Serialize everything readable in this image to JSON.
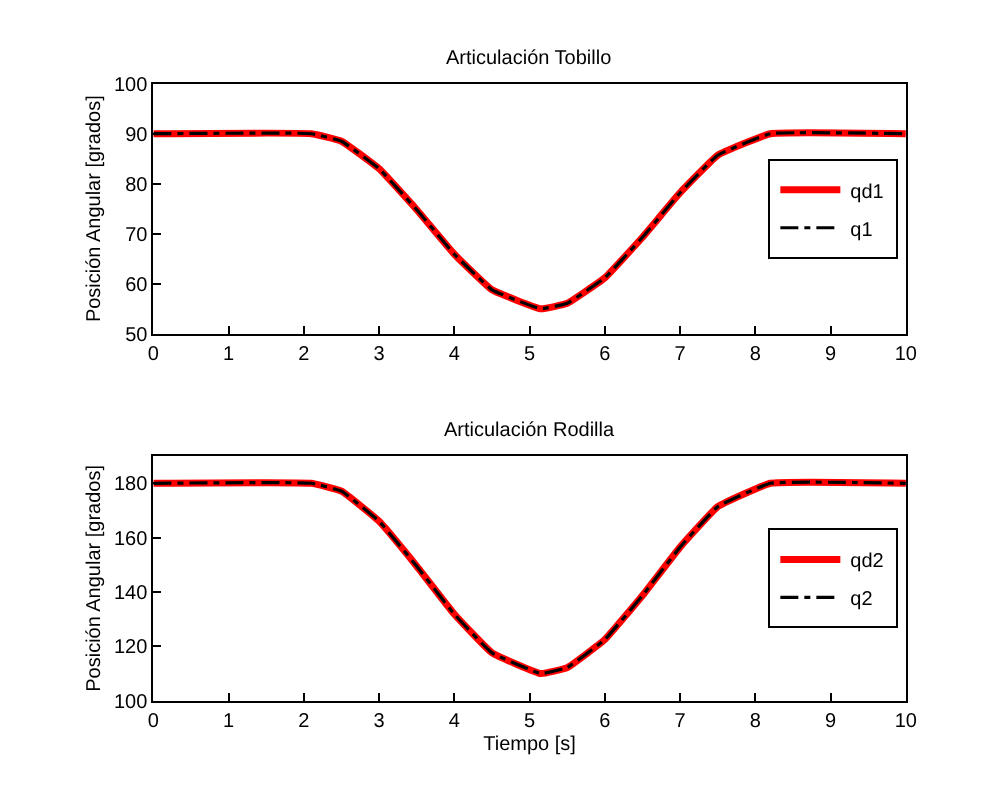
{
  "chart_data": [
    {
      "type": "line",
      "title": "Articulación Tobillo",
      "ylabel": "Posición Angular [grados]",
      "x": [
        0,
        2.1,
        2.5,
        3.0,
        3.5,
        4.0,
        4.5,
        5.15,
        5.5,
        6.0,
        6.5,
        7.0,
        7.5,
        8.2,
        10
      ],
      "series": [
        {
          "name": "qd1",
          "color": "#ff0000",
          "line_style": "solid",
          "values": [
            90,
            90,
            88.5,
            83.0,
            74.8,
            65.9,
            58.8,
            55,
            56.1,
            61.2,
            69.3,
            78.2,
            85.7,
            90,
            90
          ]
        },
        {
          "name": "q1",
          "color": "#000000",
          "line_style": "dashdot",
          "values": [
            90,
            90,
            88.5,
            83.0,
            74.8,
            65.9,
            58.8,
            55,
            56.1,
            61.2,
            69.3,
            78.2,
            85.7,
            90,
            90
          ]
        }
      ],
      "xlim": [
        0,
        10
      ],
      "xticks": [
        0,
        1,
        2,
        3,
        4,
        5,
        6,
        7,
        8,
        9,
        10
      ],
      "ylim": [
        50,
        100
      ],
      "yticks": [
        50,
        60,
        70,
        80,
        90,
        100
      ],
      "legend": "right",
      "marker": "none"
    },
    {
      "type": "line",
      "title": "Articulación Rodilla",
      "xlabel": "Tiempo [s]",
      "ylabel": "Posición Angular [grados]",
      "x": [
        0,
        2.1,
        2.5,
        3.0,
        3.5,
        4.0,
        4.5,
        5.15,
        5.5,
        6.0,
        6.5,
        7.0,
        7.5,
        8.2,
        10
      ],
      "series": [
        {
          "name": "qd2",
          "color": "#ff0000",
          "line_style": "solid",
          "values": [
            180,
            180,
            177.1,
            166,
            149.5,
            131.8,
            117.6,
            110,
            112.2,
            122.5,
            138.7,
            156.5,
            171.4,
            180,
            180
          ]
        },
        {
          "name": "q2",
          "color": "#000000",
          "line_style": "dashdot",
          "values": [
            180,
            180,
            177.1,
            166,
            149.5,
            131.8,
            117.6,
            110,
            112.2,
            122.5,
            138.7,
            156.5,
            171.4,
            180,
            180
          ]
        }
      ],
      "xlim": [
        0,
        10
      ],
      "xticks": [
        0,
        1,
        2,
        3,
        4,
        5,
        6,
        7,
        8,
        9,
        10
      ],
      "ylim": [
        100,
        190
      ],
      "yticks": [
        100,
        120,
        140,
        160,
        180
      ],
      "legend": "right",
      "marker": "none"
    }
  ]
}
